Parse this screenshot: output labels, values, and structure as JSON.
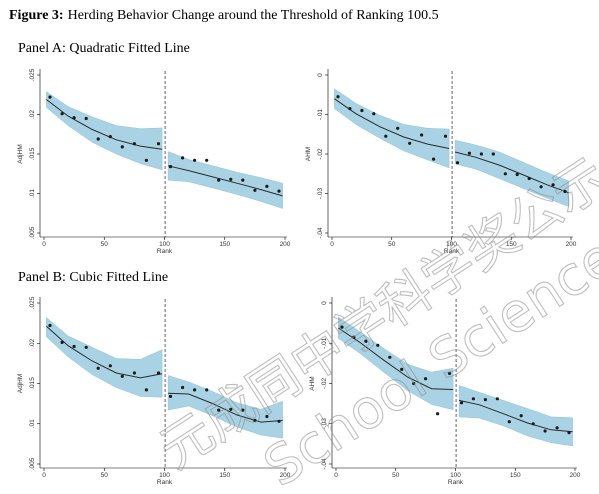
{
  "figure": {
    "label": "Figure 3:",
    "title": "Herding Behavior Change around the Threshold of Ranking 100.5"
  },
  "panels": [
    {
      "title": "Panel A: Quadratic Fitted Line"
    },
    {
      "title": "Panel B: Cubic Fitted Line"
    }
  ],
  "watermark": {
    "cjk": "元成同中学科学奖公示",
    "latin": "School Science Aw"
  },
  "colors": {
    "band": "#a9d3e4",
    "band_edge": "#8cc3da",
    "line": "#2a2a2a",
    "point": "#1a1a1a",
    "cutoff": "#555555"
  },
  "chart_data": [
    {
      "type": "scatter",
      "fit": "quadratic",
      "xlabel": "Rank",
      "ylabel": "AdjHM",
      "xlim": [
        0,
        200
      ],
      "ylim": [
        0.005,
        0.025
      ],
      "xticks": [
        0,
        50,
        100,
        150,
        200
      ],
      "xtick_labels": [
        "0",
        "50",
        "100",
        "150",
        "200"
      ],
      "yticks": [
        0.005,
        0.01,
        0.015,
        0.02,
        0.025
      ],
      "ytick_labels": [
        ".005",
        ".01",
        ".015",
        ".02",
        ".025"
      ],
      "threshold": 100.5,
      "left": {
        "points": {
          "x": [
            5,
            15,
            25,
            35,
            45,
            55,
            65,
            75,
            85,
            95
          ],
          "y": [
            0.0222,
            0.0201,
            0.0196,
            0.0195,
            0.0169,
            0.0172,
            0.0159,
            0.0163,
            0.0142,
            0.0163
          ]
        },
        "fit": {
          "x": [
            2,
            20,
            40,
            60,
            80,
            98
          ],
          "y": [
            0.0219,
            0.0198,
            0.0181,
            0.0168,
            0.016,
            0.0156
          ]
        },
        "ci_upper": [
          0.0229,
          0.021,
          0.0197,
          0.0186,
          0.0182,
          0.0183
        ],
        "ci_lower": [
          0.0209,
          0.0186,
          0.0165,
          0.015,
          0.0138,
          0.013
        ]
      },
      "right": {
        "points": {
          "x": [
            105,
            115,
            125,
            135,
            145,
            155,
            165,
            175,
            185,
            195
          ],
          "y": [
            0.0134,
            0.0145,
            0.0142,
            0.0142,
            0.0117,
            0.0118,
            0.0117,
            0.0104,
            0.0109,
            0.0103
          ]
        },
        "fit": {
          "x": [
            103,
            120,
            140,
            160,
            180,
            198
          ],
          "y": [
            0.0135,
            0.0129,
            0.0121,
            0.0113,
            0.0105,
            0.0097
          ]
        },
        "ci_upper": [
          0.0153,
          0.0143,
          0.0135,
          0.0127,
          0.012,
          0.0113
        ],
        "ci_lower": [
          0.0117,
          0.0115,
          0.0107,
          0.0099,
          0.009,
          0.0081
        ]
      }
    },
    {
      "type": "scatter",
      "fit": "quadratic",
      "xlabel": "Rank",
      "ylabel": "AHM",
      "xlim": [
        0,
        200
      ],
      "ylim": [
        -0.04,
        0
      ],
      "xticks": [
        0,
        50,
        100,
        150,
        200
      ],
      "xtick_labels": [
        "0",
        "50",
        "100",
        "150",
        "200"
      ],
      "yticks": [
        -0.04,
        -0.03,
        -0.02,
        -0.01,
        0
      ],
      "ytick_labels": [
        "-.04",
        "-.03",
        "-.02",
        "-.01",
        "0"
      ],
      "threshold": 100.5,
      "left": {
        "points": {
          "x": [
            5,
            15,
            25,
            35,
            45,
            55,
            65,
            75,
            85,
            95
          ],
          "y": [
            -0.0055,
            -0.0085,
            -0.009,
            -0.0098,
            -0.0155,
            -0.0135,
            -0.0173,
            -0.0152,
            -0.0213,
            -0.0155
          ]
        },
        "fit": {
          "x": [
            2,
            20,
            40,
            60,
            80,
            98
          ],
          "y": [
            -0.006,
            -0.0098,
            -0.0131,
            -0.0157,
            -0.0175,
            -0.0186
          ]
        },
        "ci_upper": [
          -0.0035,
          -0.0072,
          -0.0102,
          -0.0125,
          -0.0135,
          -0.0137
        ],
        "ci_lower": [
          -0.0085,
          -0.0125,
          -0.016,
          -0.0192,
          -0.0215,
          -0.0235
        ]
      },
      "right": {
        "points": {
          "x": [
            105,
            115,
            125,
            135,
            145,
            155,
            165,
            175,
            185,
            195
          ],
          "y": [
            -0.0222,
            -0.0198,
            -0.02,
            -0.02,
            -0.025,
            -0.0252,
            -0.0262,
            -0.0283,
            -0.0278,
            -0.0295
          ]
        },
        "fit": {
          "x": [
            103,
            120,
            140,
            160,
            180,
            198
          ],
          "y": [
            -0.0195,
            -0.0208,
            -0.0228,
            -0.0253,
            -0.0278,
            -0.0298
          ]
        },
        "ci_upper": [
          -0.0165,
          -0.0177,
          -0.0195,
          -0.0221,
          -0.0247,
          -0.0268
        ],
        "ci_lower": [
          -0.0225,
          -0.0238,
          -0.0262,
          -0.0287,
          -0.0312,
          -0.0333
        ]
      }
    },
    {
      "type": "scatter",
      "fit": "cubic",
      "xlabel": "Rank",
      "ylabel": "AdjHM",
      "xlim": [
        0,
        200
      ],
      "ylim": [
        0.005,
        0.025
      ],
      "xticks": [
        0,
        50,
        100,
        150,
        200
      ],
      "xtick_labels": [
        "0",
        "50",
        "100",
        "150",
        "200"
      ],
      "yticks": [
        0.005,
        0.01,
        0.015,
        0.02,
        0.025
      ],
      "ytick_labels": [
        ".005",
        ".01",
        ".015",
        ".02",
        ".025"
      ],
      "threshold": 100.5,
      "left": {
        "points": {
          "x": [
            5,
            15,
            25,
            35,
            45,
            55,
            65,
            75,
            85,
            95
          ],
          "y": [
            0.0222,
            0.0201,
            0.0196,
            0.0195,
            0.0169,
            0.0172,
            0.0159,
            0.0163,
            0.0142,
            0.0163
          ]
        },
        "fit": {
          "x": [
            2,
            20,
            40,
            60,
            80,
            98
          ],
          "y": [
            0.0221,
            0.0197,
            0.0178,
            0.0163,
            0.0157,
            0.0162
          ]
        },
        "ci_upper": [
          0.0232,
          0.0209,
          0.0195,
          0.0181,
          0.018,
          0.0192
        ],
        "ci_lower": [
          0.0208,
          0.0183,
          0.0161,
          0.0145,
          0.0134,
          0.0133
        ]
      },
      "right": {
        "points": {
          "x": [
            105,
            115,
            125,
            135,
            145,
            155,
            165,
            175,
            185,
            195
          ],
          "y": [
            0.0134,
            0.0145,
            0.0142,
            0.0142,
            0.0117,
            0.0118,
            0.0117,
            0.0104,
            0.0109,
            0.0103
          ]
        },
        "fit": {
          "x": [
            103,
            120,
            140,
            160,
            180,
            198
          ],
          "y": [
            0.0138,
            0.0137,
            0.0125,
            0.0111,
            0.0102,
            0.0104
          ]
        },
        "ci_upper": [
          0.016,
          0.0152,
          0.014,
          0.0126,
          0.0118,
          0.0128
        ],
        "ci_lower": [
          0.0117,
          0.0122,
          0.011,
          0.0096,
          0.0086,
          0.0082
        ]
      }
    },
    {
      "type": "scatter",
      "fit": "cubic",
      "xlabel": "Rank",
      "ylabel": "AHM",
      "xlim": [
        0,
        200
      ],
      "ylim": [
        -0.04,
        0
      ],
      "xticks": [
        0,
        50,
        100,
        150,
        200
      ],
      "xtick_labels": [
        "0",
        "50",
        "100",
        "150",
        "200"
      ],
      "yticks": [
        -0.04,
        -0.03,
        -0.02,
        -0.01,
        0
      ],
      "ytick_labels": [
        "-.04",
        "-.03",
        "-.02",
        "-.01",
        "0"
      ],
      "threshold": 100.5,
      "left": {
        "points": {
          "x": [
            5,
            15,
            25,
            35,
            45,
            55,
            65,
            75,
            85,
            95
          ],
          "y": [
            -0.006,
            -0.0085,
            -0.0095,
            -0.0105,
            -0.0135,
            -0.0165,
            -0.02,
            -0.0188,
            -0.0275,
            -0.0175
          ]
        },
        "fit": {
          "x": [
            2,
            20,
            40,
            60,
            80,
            98
          ],
          "y": [
            -0.0062,
            -0.0098,
            -0.0142,
            -0.0184,
            -0.0213,
            -0.0215
          ]
        },
        "ci_upper": [
          -0.0035,
          -0.0071,
          -0.0113,
          -0.0152,
          -0.0172,
          -0.0162
        ],
        "ci_lower": [
          -0.0088,
          -0.0125,
          -0.0172,
          -0.0218,
          -0.0252,
          -0.0265
        ]
      },
      "right": {
        "points": {
          "x": [
            105,
            115,
            125,
            135,
            145,
            155,
            165,
            175,
            185,
            195
          ],
          "y": [
            -0.0248,
            -0.0238,
            -0.024,
            -0.0238,
            -0.0295,
            -0.028,
            -0.03,
            -0.0318,
            -0.031,
            -0.0322
          ]
        },
        "fit": {
          "x": [
            103,
            120,
            140,
            160,
            180,
            198
          ],
          "y": [
            -0.0242,
            -0.0253,
            -0.0275,
            -0.0298,
            -0.0315,
            -0.032
          ]
        },
        "ci_upper": [
          -0.0205,
          -0.0222,
          -0.0242,
          -0.0262,
          -0.0283,
          -0.0285
        ],
        "ci_lower": [
          -0.0283,
          -0.0286,
          -0.0305,
          -0.033,
          -0.0347,
          -0.0355
        ]
      }
    }
  ]
}
